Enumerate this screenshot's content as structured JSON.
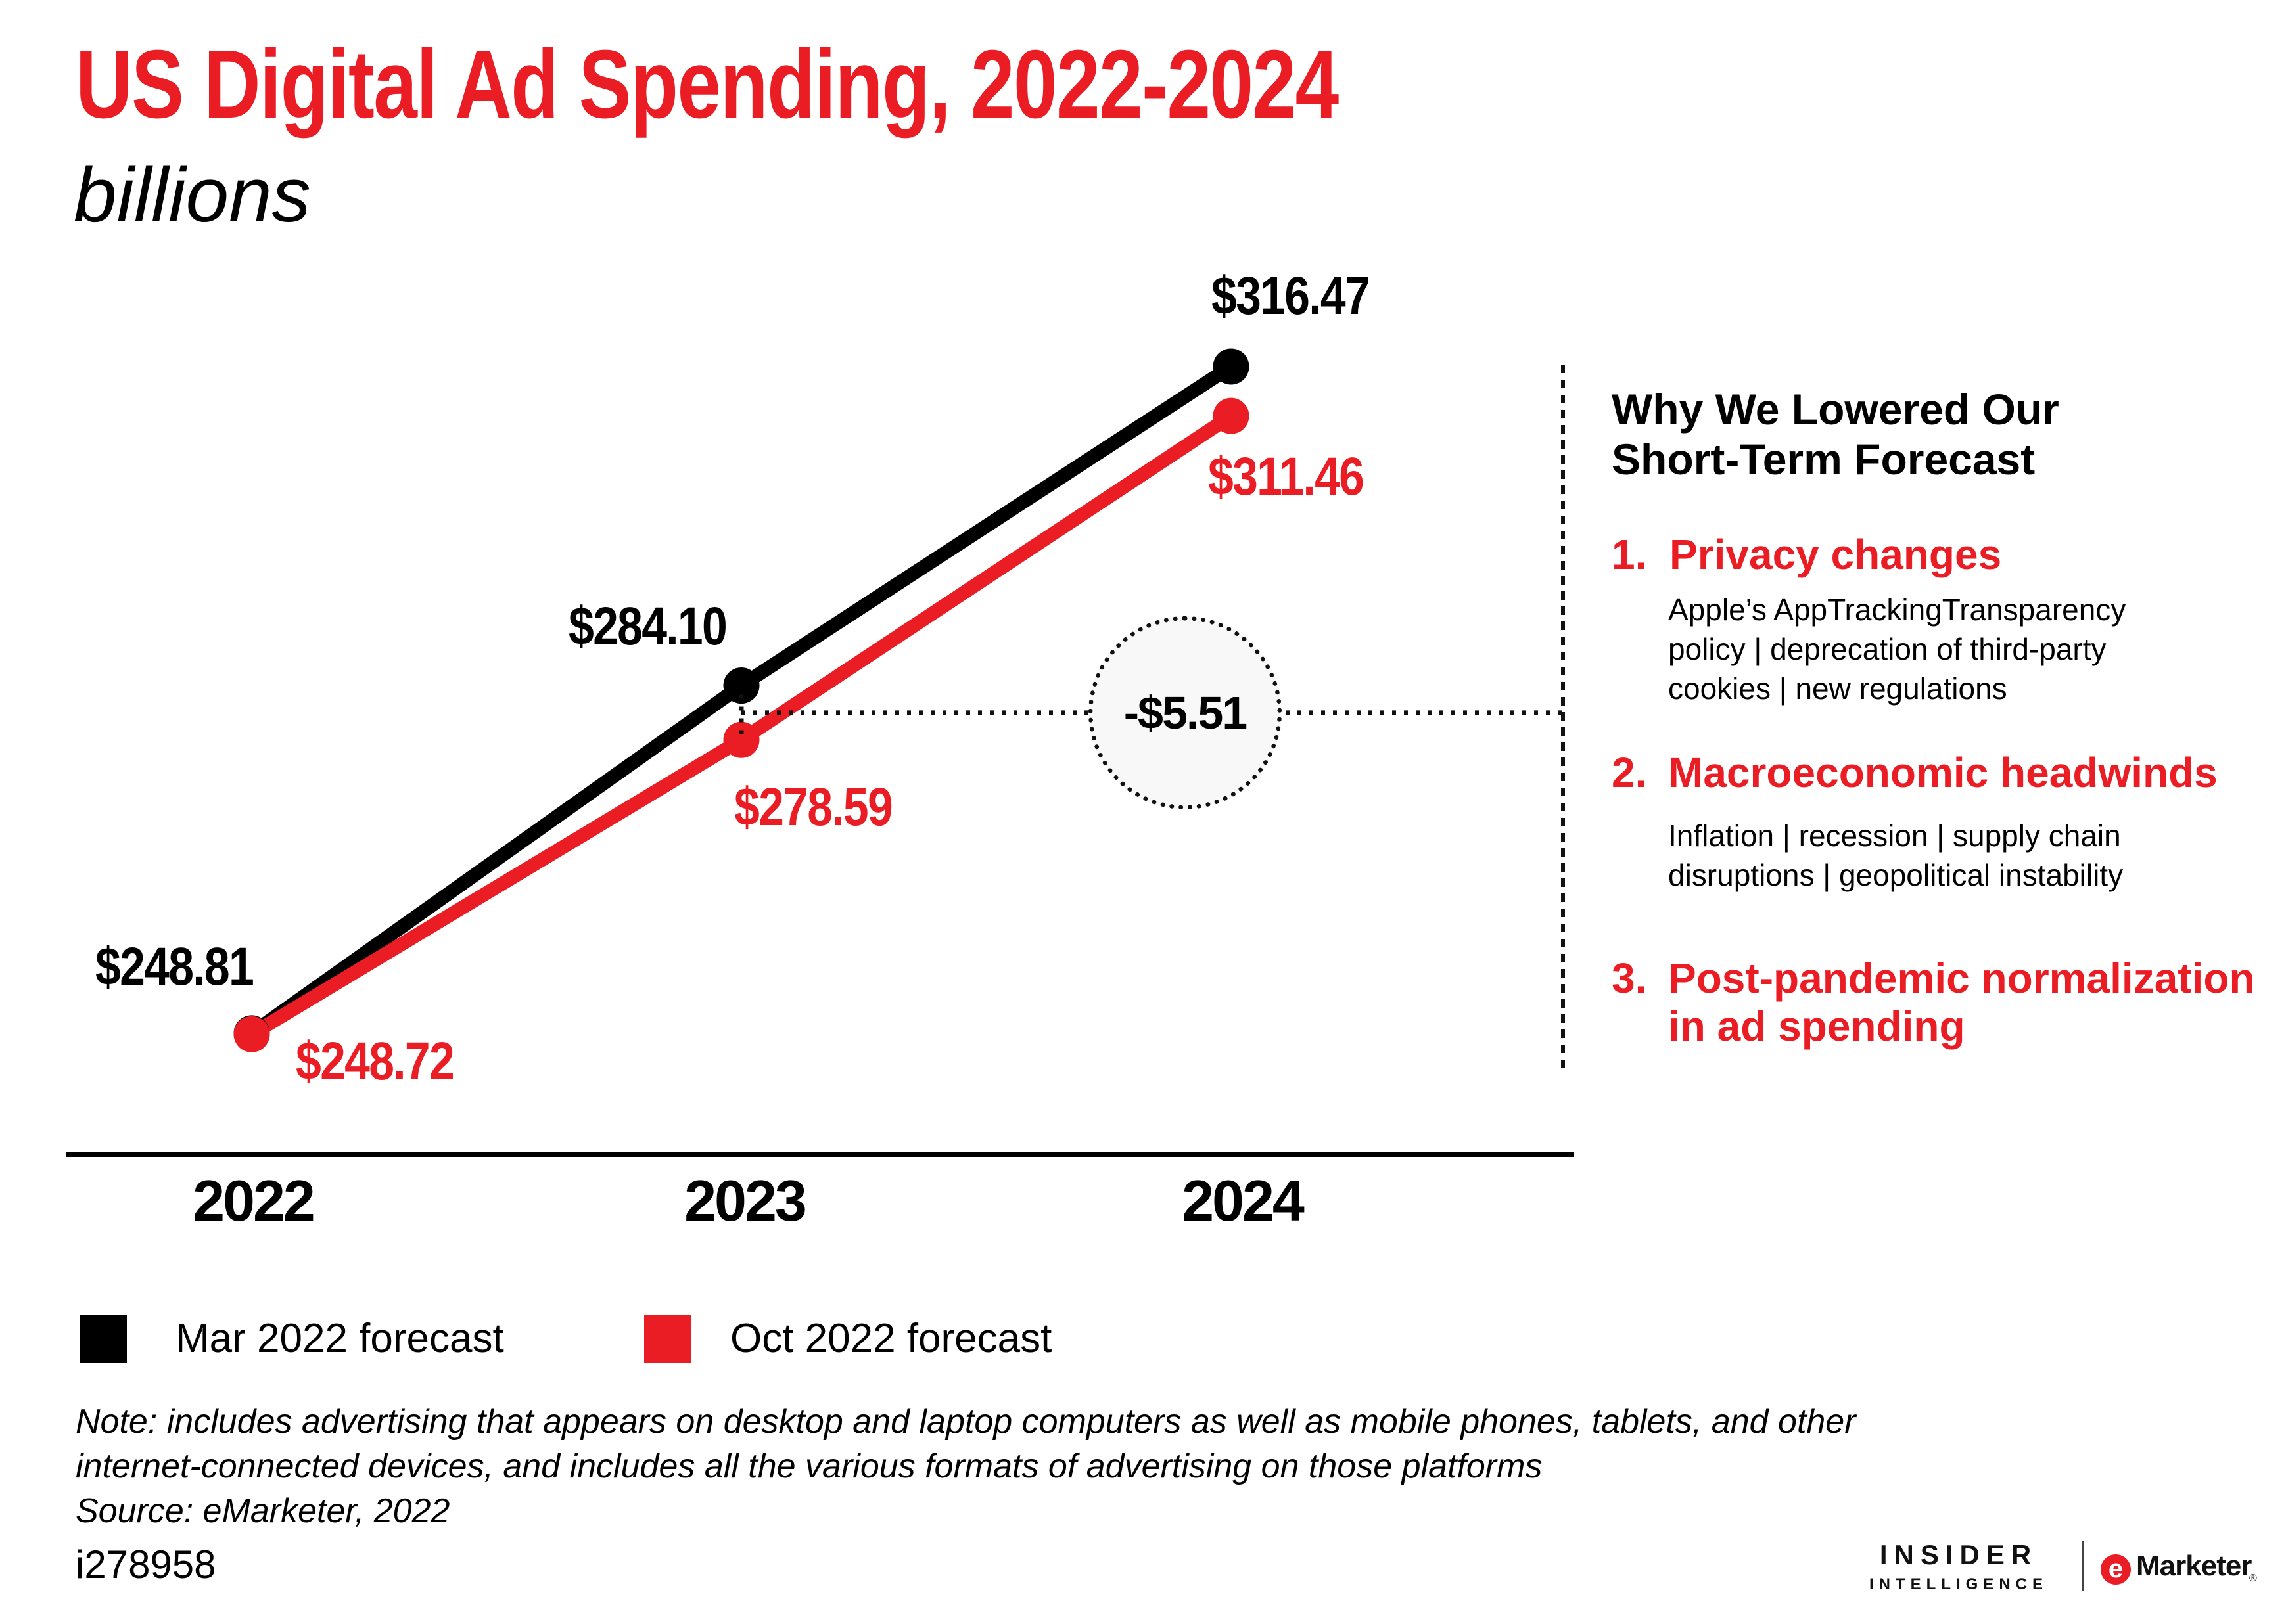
{
  "page": {
    "title": "US Digital Ad Spending, 2022-2024",
    "subtitle": "billions"
  },
  "colors": {
    "red": "#EA1C24",
    "black": "#000000",
    "annotation_fill": "#F8F8F8"
  },
  "chart_data": {
    "type": "line",
    "title": "US Digital Ad Spending, 2022-2024",
    "ylabel": "billions of US dollars ($)",
    "categories": [
      "2022",
      "2023",
      "2024"
    ],
    "series": [
      {
        "name": "Mar 2022 forecast",
        "color": "#000000",
        "values": [
          248.81,
          284.1,
          316.47
        ],
        "labels": [
          "$248.81",
          "$284.10",
          "$316.47"
        ]
      },
      {
        "name": "Oct 2022 forecast",
        "color": "#EA1C24",
        "values": [
          248.72,
          278.59,
          311.46
        ],
        "labels": [
          "$248.72",
          "$278.59",
          "$311.46"
        ]
      }
    ],
    "annotation": {
      "text": "-$5.51",
      "at_category": "2023",
      "meaning": "gap between the two 2023 forecasts"
    },
    "ylim": [
      240,
      330
    ],
    "grid": false,
    "legend_position": "bottom-left"
  },
  "side_panel": {
    "title_lines": [
      "Why We Lowered Our",
      "Short-Term Forecast"
    ],
    "items": [
      {
        "number": "1.",
        "heading_lines": [
          "Privacy changes"
        ],
        "body_lines": [
          "Apple’s AppTrackingTransparency",
          "policy | deprecation of third-party",
          "cookies | new regulations"
        ]
      },
      {
        "number": "2.",
        "heading_lines": [
          "Macroeconomic headwinds"
        ],
        "body_lines": [
          "Inflation | recession | supply chain",
          "disruptions | geopolitical instability"
        ]
      },
      {
        "number": "3.",
        "heading_lines": [
          "Post-pandemic normalization",
          "in ad spending"
        ],
        "body_lines": []
      }
    ]
  },
  "legend": [
    {
      "label": "Mar 2022 forecast",
      "color": "#000000"
    },
    {
      "label": "Oct 2022 forecast",
      "color": "#EA1C24"
    }
  ],
  "footnote": {
    "note_lines": [
      "Note: includes advertising that appears on desktop and laptop computers as well as mobile phones, tablets, and other",
      "internet-connected devices, and includes all the various formats of advertising on those platforms",
      "Source: eMarketer, 2022"
    ],
    "id": "i278958"
  },
  "branding": {
    "insider": "INSIDER",
    "intelligence": "INTELLIGENCE",
    "emarketer_e": "e",
    "emarketer_text": "Marketer",
    "registered": "®"
  }
}
